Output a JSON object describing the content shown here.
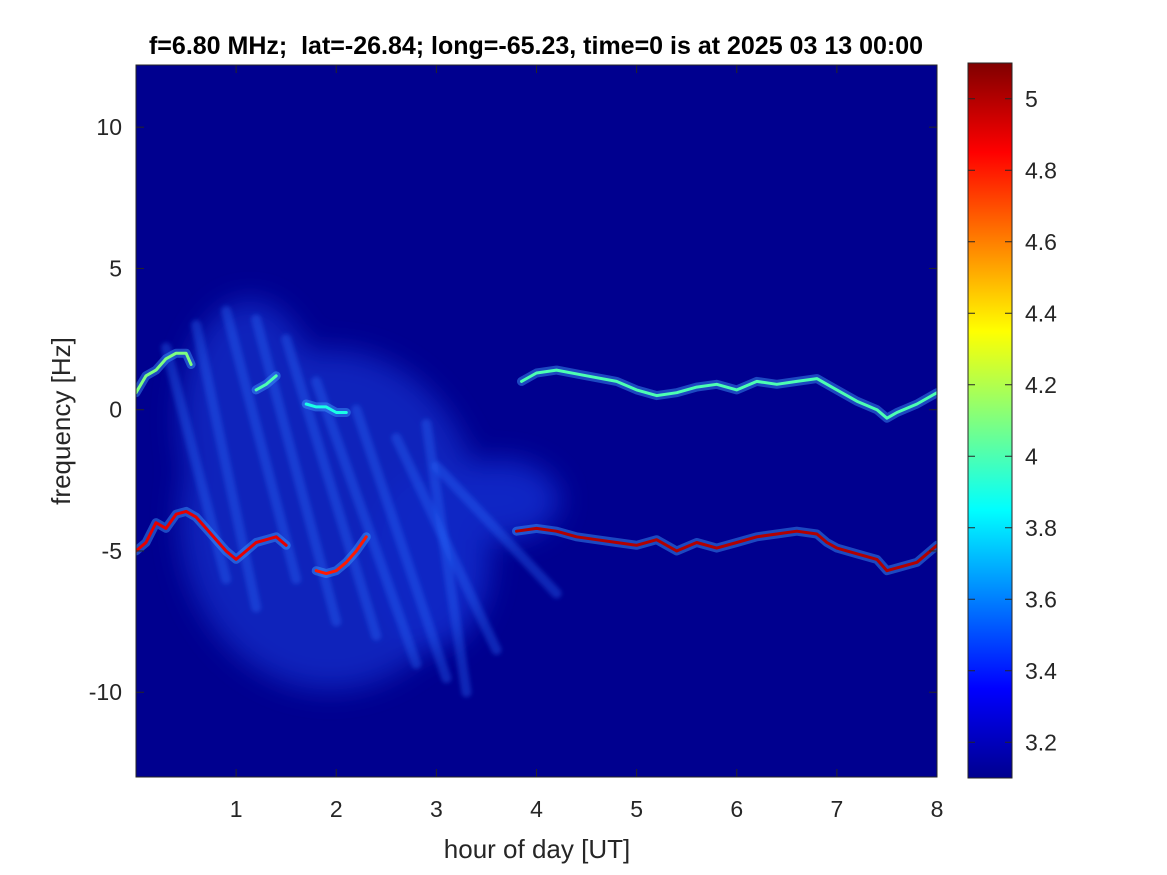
{
  "chart_data": {
    "type": "heatmap",
    "title": "f=6.80 MHz;  lat=-26.84; long=-65.23, time=0 is at 2025 03 13 00:00",
    "xlabel": "hour of day [UT]",
    "ylabel": "frequency [Hz]",
    "xlim": [
      0,
      8
    ],
    "ylim": [
      -13,
      12.2
    ],
    "xticks": [
      1,
      2,
      3,
      4,
      5,
      6,
      7,
      8
    ],
    "xtick_labels": [
      "1",
      "2",
      "3",
      "4",
      "5",
      "6",
      "7",
      "8"
    ],
    "yticks": [
      10,
      5,
      0,
      -5,
      -10
    ],
    "ytick_labels": [
      "10",
      "5",
      "0",
      "-5",
      "-10"
    ],
    "colorbar": {
      "colormap": "jet",
      "clim": [
        3.1,
        5.1
      ],
      "ticks": [
        5,
        4.8,
        4.6,
        4.4,
        4.2,
        4,
        3.8,
        3.6,
        3.4,
        3.2
      ],
      "tick_labels": [
        "5",
        "4.8",
        "4.6",
        "4.4",
        "4.2",
        "4",
        "3.8",
        "3.6",
        "3.4",
        "3.2"
      ]
    },
    "background_color": "#00008f",
    "series": [
      {
        "x": [
          0,
          0.1,
          0.2,
          0.3,
          0.4,
          0.5,
          0.55
        ],
        "y": [
          0.6,
          1.2,
          1.4,
          1.8,
          2.0,
          2.0,
          1.6
        ],
        "intensity": 4.1
      },
      {
        "x": [
          1.2,
          1.3,
          1.4
        ],
        "y": [
          0.7,
          0.9,
          1.2
        ],
        "intensity": 4.0
      },
      {
        "x": [
          1.7,
          1.8,
          1.9,
          2.0,
          2.1
        ],
        "y": [
          0.2,
          0.1,
          0.1,
          -0.1,
          -0.1
        ],
        "intensity": 3.9
      },
      {
        "x": [
          3.85,
          4.0,
          4.2,
          4.5,
          4.8,
          5.0,
          5.2,
          5.4,
          5.6,
          5.8,
          6.0,
          6.2,
          6.4,
          6.6,
          6.8,
          7.0,
          7.2,
          7.4,
          7.5,
          7.6,
          7.8,
          8.0
        ],
        "y": [
          1.0,
          1.3,
          1.4,
          1.2,
          1.0,
          0.7,
          0.5,
          0.6,
          0.8,
          0.9,
          0.7,
          1.0,
          0.9,
          1.0,
          1.1,
          0.7,
          0.3,
          0.0,
          -0.3,
          -0.1,
          0.2,
          0.6
        ],
        "intensity": 4.0
      },
      {
        "x": [
          0,
          0.1,
          0.2,
          0.3,
          0.4,
          0.5,
          0.6,
          0.7,
          0.8,
          0.9,
          1.0,
          1.1,
          1.2,
          1.3,
          1.4,
          1.5
        ],
        "y": [
          -5.0,
          -4.7,
          -4.0,
          -4.2,
          -3.7,
          -3.6,
          -3.8,
          -4.2,
          -4.6,
          -5.0,
          -5.3,
          -5.0,
          -4.7,
          -4.6,
          -4.5,
          -4.8
        ],
        "intensity": 4.9
      },
      {
        "x": [
          1.8,
          1.9,
          2.0,
          2.1,
          2.2,
          2.3
        ],
        "y": [
          -5.7,
          -5.8,
          -5.7,
          -5.4,
          -5.0,
          -4.5
        ],
        "intensity": 4.8
      },
      {
        "x": [
          3.8,
          4.0,
          4.2,
          4.4,
          4.6,
          4.8,
          5.0,
          5.2,
          5.4,
          5.6,
          5.8,
          6.0,
          6.2,
          6.4,
          6.6,
          6.8,
          6.9,
          7.0,
          7.2,
          7.4,
          7.5,
          7.6,
          7.8,
          8.0
        ],
        "y": [
          -4.3,
          -4.2,
          -4.3,
          -4.5,
          -4.6,
          -4.7,
          -4.8,
          -4.6,
          -5.0,
          -4.7,
          -4.9,
          -4.7,
          -4.5,
          -4.4,
          -4.3,
          -4.4,
          -4.7,
          -4.9,
          -5.1,
          -5.3,
          -5.7,
          -5.6,
          -5.4,
          -4.8
        ],
        "intensity": 5.0
      }
    ]
  }
}
